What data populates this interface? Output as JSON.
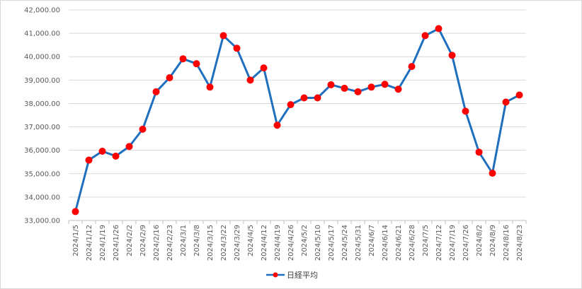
{
  "chart_data": {
    "type": "line",
    "title": "",
    "xlabel": "",
    "ylabel": "",
    "ylim": [
      33000,
      42000
    ],
    "ytick_step": 1000,
    "grid": true,
    "legend_position": "bottom",
    "x": [
      "2024/1/5",
      "2024/1/12",
      "2024/1/19",
      "2024/1/26",
      "2024/2/2",
      "2024/2/9",
      "2024/2/16",
      "2024/2/23",
      "2024/3/1",
      "2024/3/8",
      "2024/3/15",
      "2024/3/22",
      "2024/3/29",
      "2024/4/5",
      "2024/4/12",
      "2024/4/19",
      "2024/4/26",
      "2024/5/2",
      "2024/5/10",
      "2024/5/17",
      "2024/5/24",
      "2024/5/31",
      "2024/6/7",
      "2024/6/14",
      "2024/6/21",
      "2024/6/28",
      "2024/7/5",
      "2024/7/12",
      "2024/7/19",
      "2024/7/26",
      "2024/8/2",
      "2024/8/9",
      "2024/8/16",
      "2024/8/23"
    ],
    "series": [
      {
        "name": "日経平均",
        "line_color": "#1f6fbf",
        "marker_color": "#ff0000",
        "values": [
          33380,
          35580,
          35960,
          35750,
          36160,
          36900,
          38500,
          39100,
          39910,
          39700,
          38700,
          40900,
          40360,
          39000,
          39520,
          37070,
          37950,
          38240,
          38240,
          38800,
          38650,
          38500,
          38700,
          38820,
          38610,
          39580,
          40900,
          41200,
          40060,
          37670,
          35920,
          35020,
          38060,
          38360
        ]
      }
    ]
  }
}
